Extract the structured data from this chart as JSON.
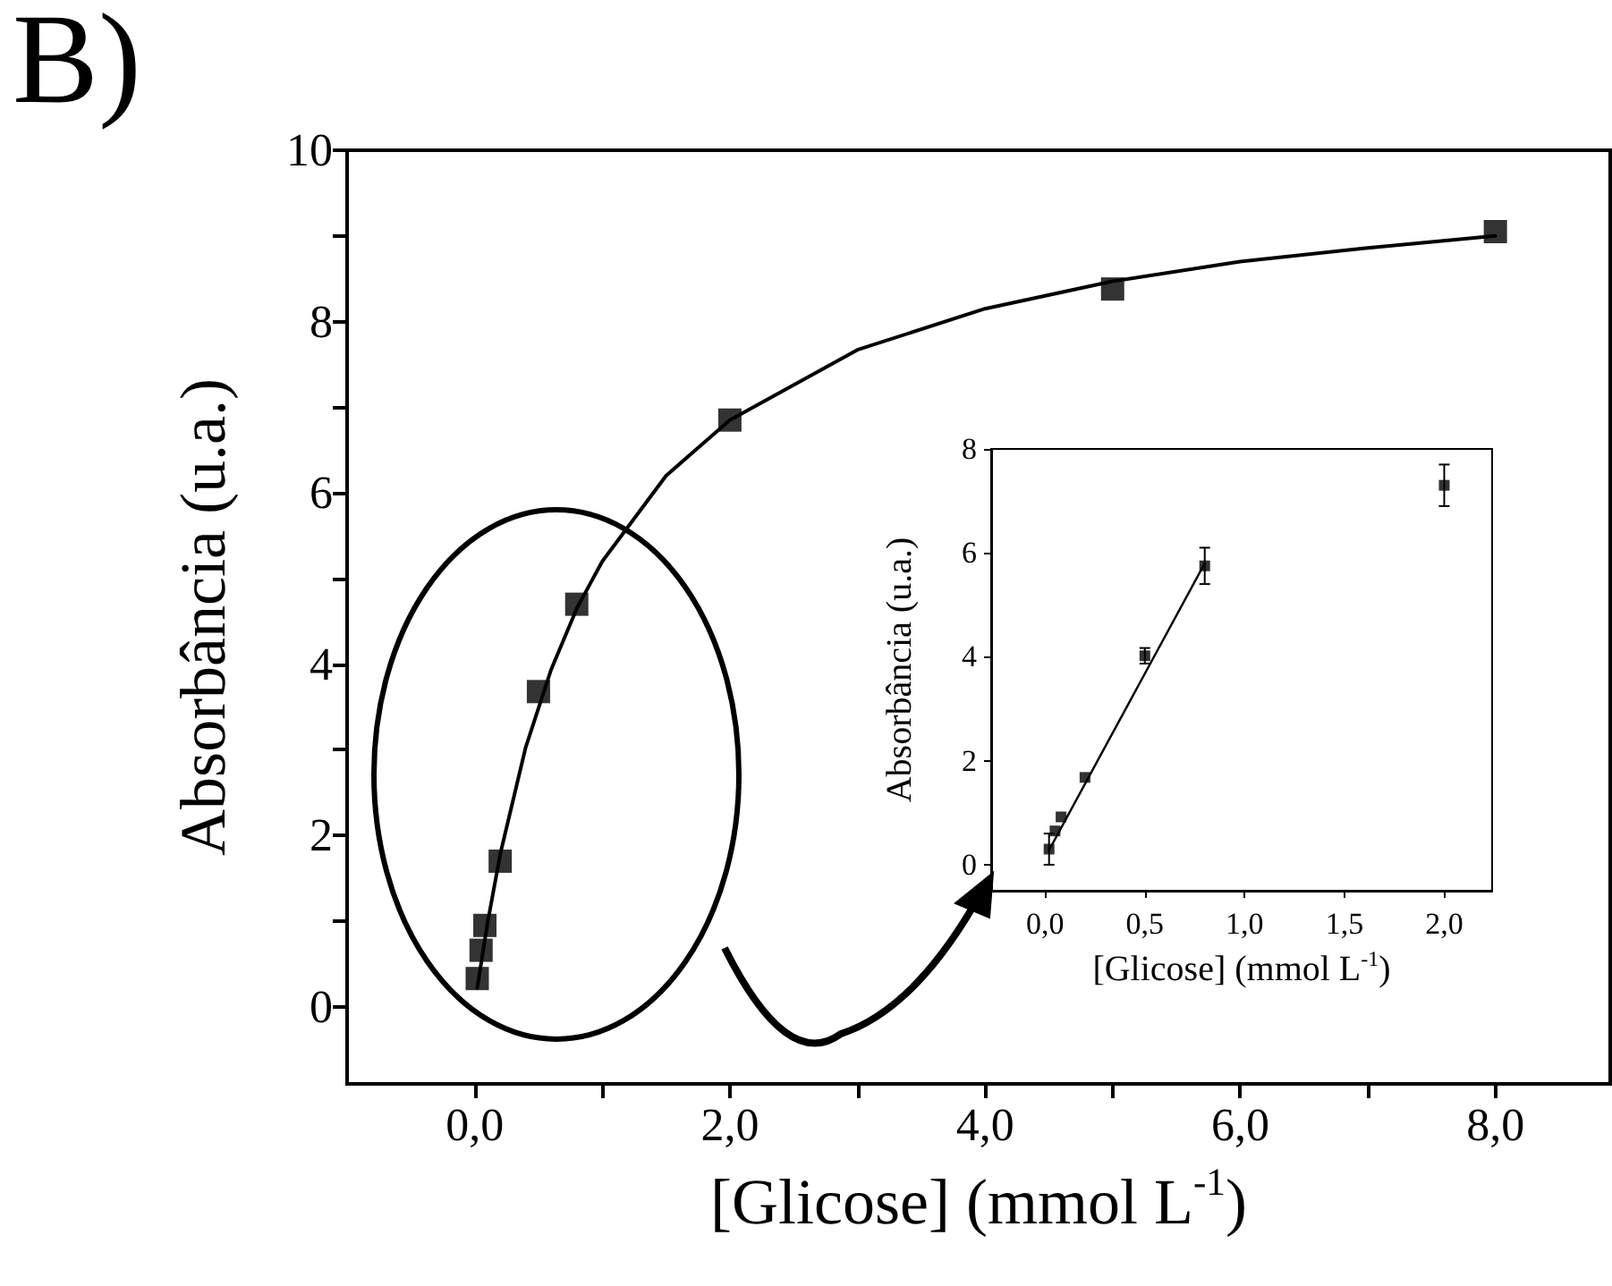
{
  "chart_data": [
    {
      "type": "scatter",
      "title": "B)",
      "xlabel": "[Glicose] (mmol L$^{-1}$)",
      "ylabel": "Absorbância (u.a.)",
      "xlim": [
        -1,
        8.9
      ],
      "ylim": [
        -0.9,
        10
      ],
      "xticks": [
        {
          "value": 0,
          "label": "0,0"
        },
        {
          "value": 1,
          "label": null
        },
        {
          "value": 2,
          "label": "2,0"
        },
        {
          "value": 3,
          "label": null
        },
        {
          "value": 4,
          "label": "4,0"
        },
        {
          "value": 5,
          "label": null
        },
        {
          "value": 6,
          "label": "6,0"
        },
        {
          "value": 7,
          "label": null
        },
        {
          "value": 8,
          "label": "8,0"
        }
      ],
      "yticks": [
        0,
        {
          "value": 1,
          "label": null
        },
        2,
        {
          "value": 3,
          "label": null
        },
        4,
        {
          "value": 5,
          "label": null
        },
        6,
        {
          "value": 7,
          "label": null
        },
        8,
        {
          "value": 9,
          "label": null
        },
        10
      ],
      "grid": false,
      "marker": "square",
      "series": [
        {
          "type": "line",
          "color": "#000000",
          "marker": "none",
          "x": [
            0.02,
            0.1,
            0.2,
            0.4,
            0.6,
            0.8,
            1.0,
            1.5,
            2,
            3,
            4,
            5,
            6,
            7,
            8
          ],
          "values": [
            0.22,
            0.97,
            1.78,
            3.03,
            3.94,
            4.65,
            5.2,
            6.2,
            6.85,
            7.67,
            8.15,
            8.47,
            8.7,
            8.86,
            9.0
          ]
        },
        {
          "type": "scatter",
          "color": "#000000",
          "x": [
            0.02,
            0.05,
            0.08,
            0.2,
            0.5,
            0.8,
            2,
            5,
            8
          ],
          "values": [
            0.33,
            0.66,
            0.95,
            1.7,
            3.68,
            4.7,
            6.85,
            8.38,
            9.05
          ]
        }
      ]
    },
    {
      "type": "scatter",
      "xlabel": "[Glicose] (mmol L$^{-1}$)",
      "ylabel": "Absorbância (u.a.)",
      "xlim": [
        -0.27,
        2.24
      ],
      "ylim": [
        -0.5,
        8
      ],
      "xticks": [
        {
          "value": 0,
          "label": "0,0"
        },
        {
          "value": 0.5,
          "label": "0,5"
        },
        {
          "value": 1,
          "label": "1,0"
        },
        {
          "value": 1.5,
          "label": "1,5"
        },
        {
          "value": 2,
          "label": "2,0"
        }
      ],
      "yticks": [
        0,
        2,
        4,
        6,
        8
      ],
      "grid": false,
      "marker": "square",
      "series": [
        {
          "type": "line",
          "color": "#000000",
          "marker": "none",
          "x": [
            0.02,
            0.8
          ],
          "values": [
            0.28,
            5.8
          ]
        },
        {
          "type": "scatter",
          "color": "#000000",
          "x": [
            0.02,
            0.05,
            0.08,
            0.2,
            0.5,
            0.8,
            2
          ],
          "values": [
            0.3,
            0.65,
            0.92,
            1.68,
            4.02,
            5.75,
            7.3
          ],
          "errors": [
            0.3,
            null,
            null,
            null,
            0.15,
            0.35,
            0.4
          ]
        }
      ]
    }
  ]
}
